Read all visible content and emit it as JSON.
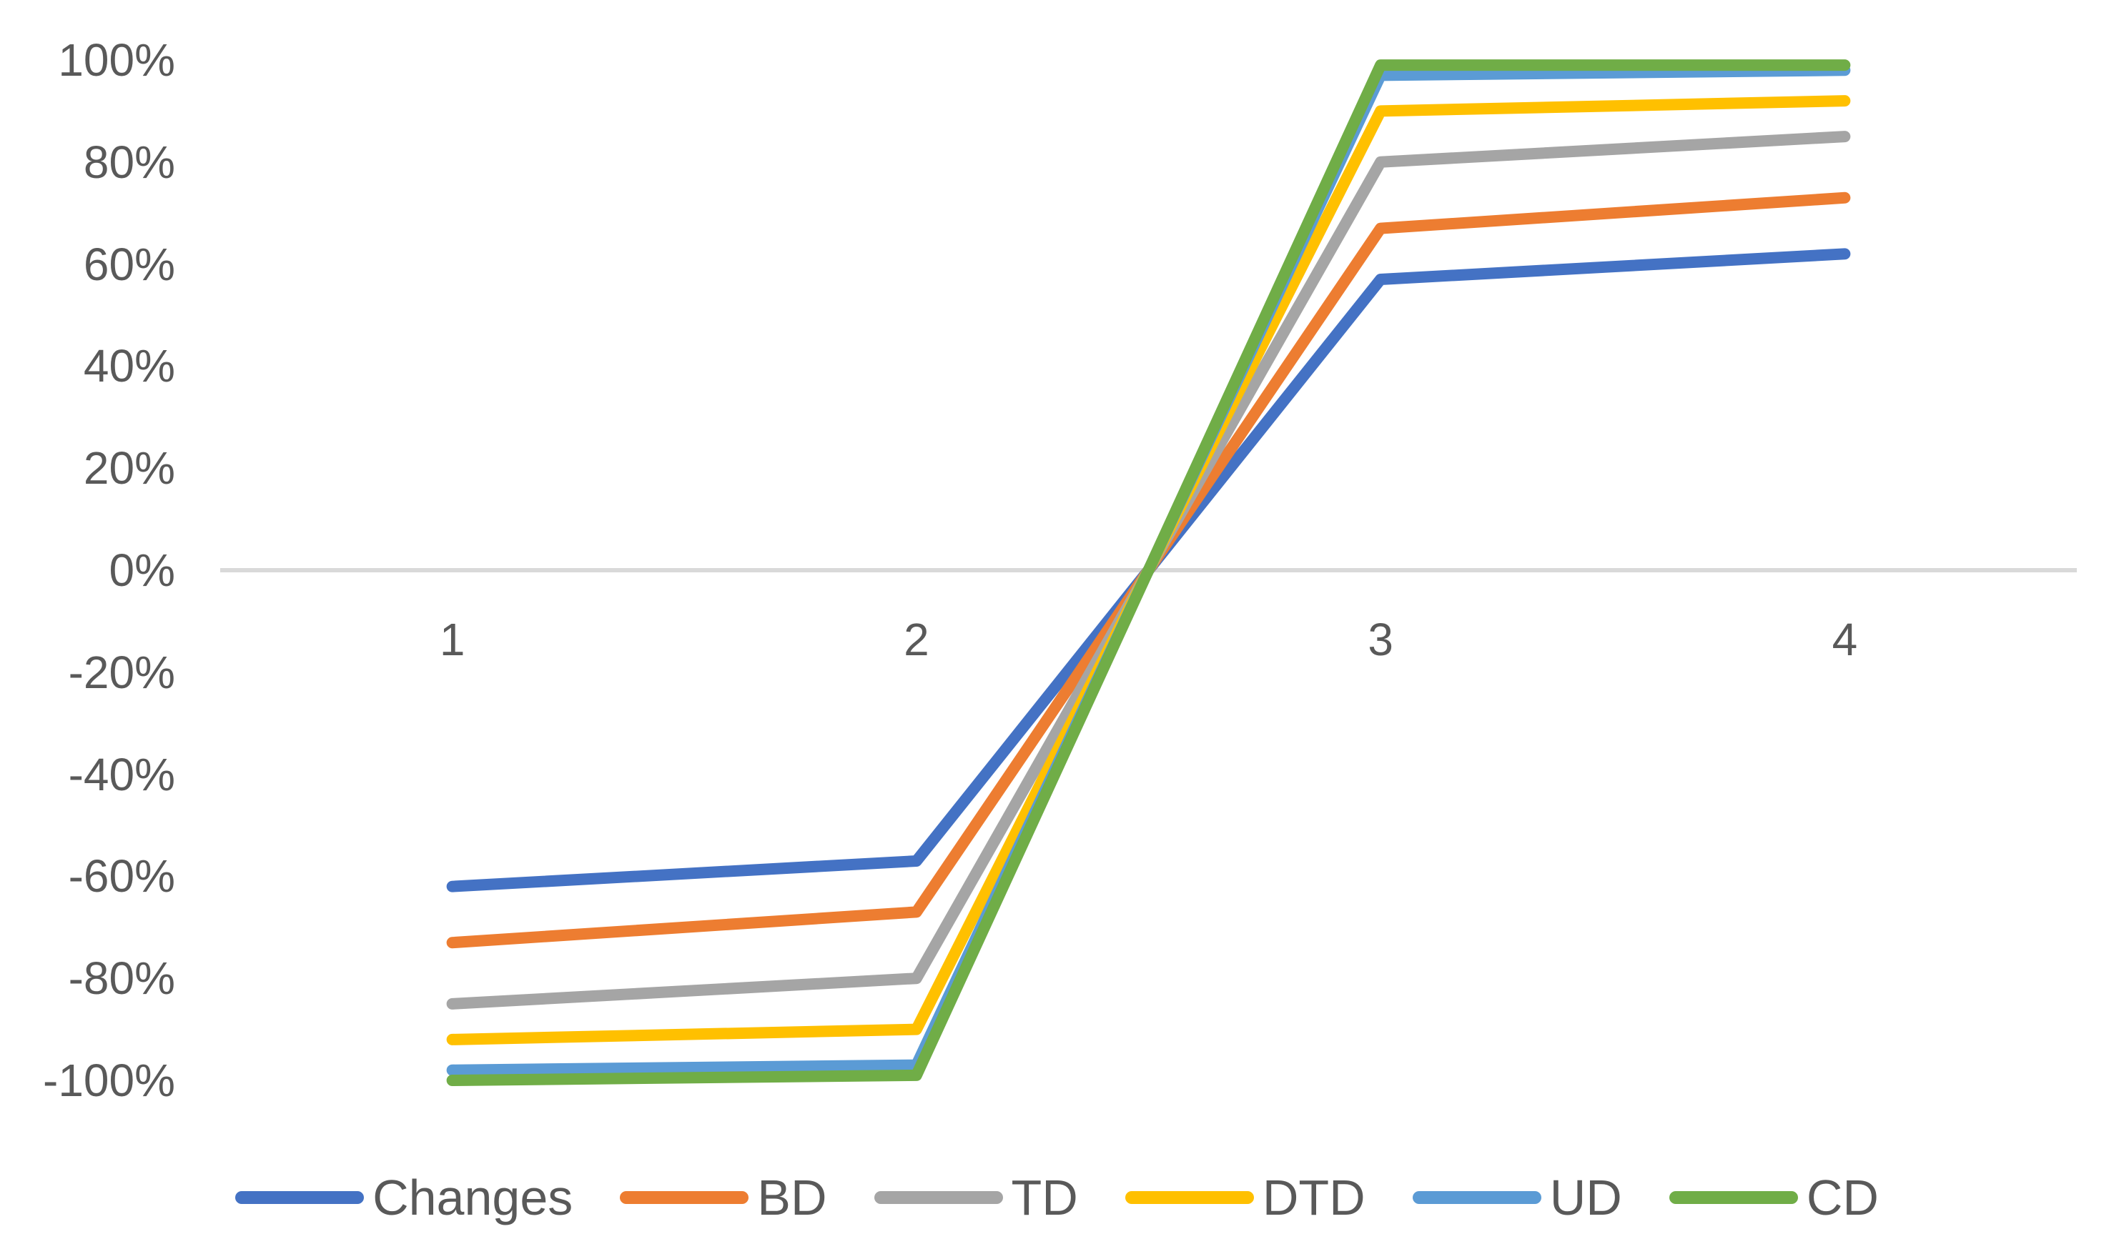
{
  "chart_data": {
    "type": "line",
    "title": "",
    "xlabel": "",
    "ylabel": "",
    "categories": [
      "1",
      "2",
      "3",
      "4"
    ],
    "series": [
      {
        "name": "Changes",
        "color": "#4472C4",
        "values": [
          -62,
          -57,
          57,
          62
        ]
      },
      {
        "name": "BD",
        "color": "#ED7D31",
        "values": [
          -73,
          -67,
          67,
          73
        ]
      },
      {
        "name": "TD",
        "color": "#A5A5A5",
        "values": [
          -85,
          -80,
          80,
          85
        ]
      },
      {
        "name": "DTD",
        "color": "#FFC000",
        "values": [
          -92,
          -90,
          90,
          92
        ]
      },
      {
        "name": "UD",
        "color": "#5B9BD5",
        "values": [
          -98,
          -97,
          97,
          98
        ]
      },
      {
        "name": "CD",
        "color": "#70AD47",
        "values": [
          -100,
          -99,
          99,
          99
        ]
      }
    ],
    "y_axis": {
      "min": -100,
      "max": 100,
      "step": 20,
      "tick_labels": [
        "100%",
        "80%",
        "60%",
        "40%",
        "20%",
        "0%",
        "-20%",
        "-40%",
        "-60%",
        "-80%",
        "-100%"
      ]
    },
    "x_axis": {
      "tick_labels": [
        "1",
        "2",
        "3",
        "4"
      ]
    },
    "legend": {
      "position": "bottom",
      "entries": [
        "Changes",
        "BD",
        "TD",
        "DTD",
        "UD",
        "CD"
      ]
    },
    "grid": {
      "zero_line_only": true,
      "zero_line_color": "#D9D9D9"
    },
    "styles": {
      "label_color": "#595959",
      "background": "#FFFFFF",
      "line_width": 16
    }
  }
}
